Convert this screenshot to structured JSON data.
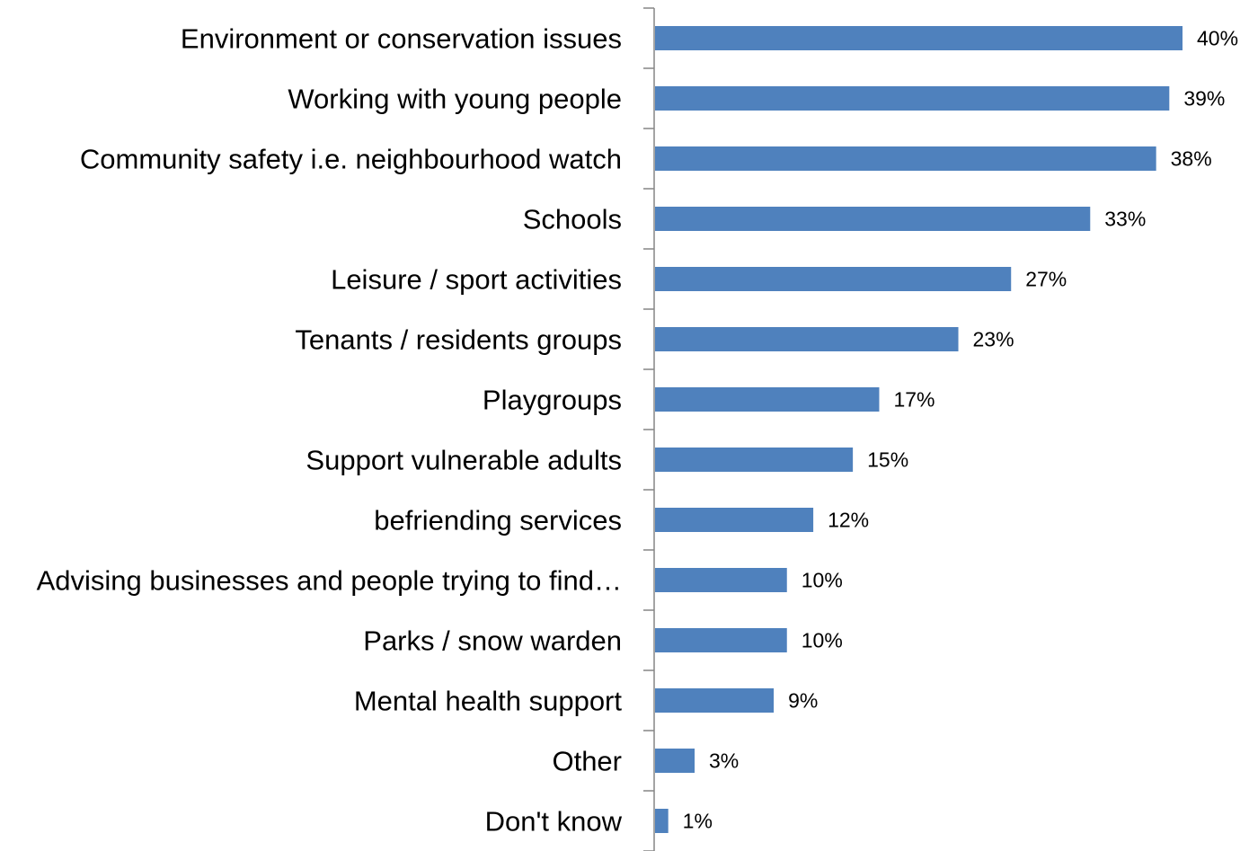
{
  "chart_data": {
    "type": "bar",
    "orientation": "horizontal",
    "categories": [
      "Environment or conservation issues",
      "Working with young people",
      "Community safety i.e. neighbourhood watch",
      "Schools",
      "Leisure / sport activities",
      "Tenants / residents groups",
      "Playgroups",
      "Support vulnerable adults",
      "befriending services",
      "Advising businesses and people trying to find…",
      "Parks / snow warden",
      "Mental health support",
      "Other",
      "Don't know"
    ],
    "values": [
      40,
      39,
      38,
      33,
      27,
      23,
      17,
      15,
      12,
      10,
      10,
      9,
      3,
      1
    ],
    "value_labels": [
      "40%",
      "39%",
      "38%",
      "33%",
      "27%",
      "23%",
      "17%",
      "15%",
      "12%",
      "10%",
      "10%",
      "9%",
      "3%",
      "1%"
    ],
    "unit": "%",
    "xlim": [
      0,
      45
    ],
    "grid": false,
    "legend": "none",
    "bar_color": "#4f81bd"
  }
}
